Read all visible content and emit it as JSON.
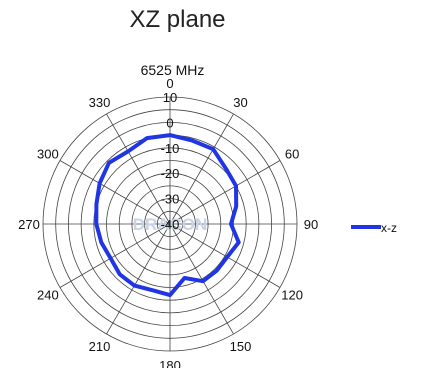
{
  "chart_data": {
    "type": "polar",
    "title": "XZ plane",
    "subtitle": "6525 MHz",
    "angle_labels": [
      "0",
      "30",
      "60",
      "90",
      "120",
      "150",
      "180",
      "210",
      "240",
      "270",
      "300",
      "330"
    ],
    "radial_labels": [
      "10",
      "0",
      "-10",
      "-20",
      "-30",
      "-40"
    ],
    "rlim": [
      -40,
      10
    ],
    "watermark": "DRACON",
    "series": [
      {
        "name": "x-z",
        "color": "#1f35e6",
        "angles": [
          0,
          15,
          30,
          45,
          60,
          75,
          90,
          105,
          120,
          135,
          150,
          165,
          180,
          195,
          210,
          225,
          240,
          255,
          270,
          285,
          300,
          315,
          330,
          345
        ],
        "values": [
          -5,
          -6,
          -6,
          -9,
          -10,
          -13,
          -16,
          -12,
          -14,
          -14,
          -14,
          -18,
          -12,
          -13,
          -12,
          -12,
          -13,
          -12,
          -11,
          -10,
          -8,
          -6,
          -7,
          -5
        ]
      }
    ]
  }
}
